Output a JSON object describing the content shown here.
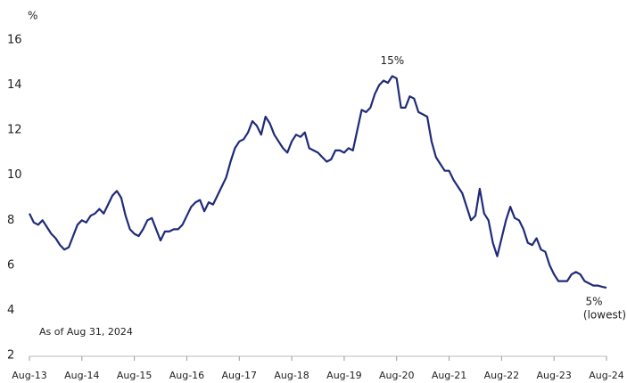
{
  "chart_data": {
    "type": "line",
    "y_label": "%",
    "note": "As of Aug 31, 2024",
    "annotations": [
      "15%",
      "5%",
      "(lowest)"
    ],
    "categories": [
      "Aug-13",
      null,
      null,
      null,
      null,
      null,
      null,
      null,
      null,
      null,
      null,
      null,
      "Aug-14",
      null,
      null,
      null,
      null,
      null,
      null,
      null,
      null,
      null,
      null,
      null,
      "Aug-15",
      null,
      null,
      null,
      null,
      null,
      null,
      null,
      null,
      null,
      null,
      null,
      "Aug-16",
      null,
      null,
      null,
      null,
      null,
      null,
      null,
      null,
      null,
      null,
      null,
      "Aug-17",
      null,
      null,
      null,
      null,
      null,
      null,
      null,
      null,
      null,
      null,
      null,
      "Aug-18",
      null,
      null,
      null,
      null,
      null,
      null,
      null,
      null,
      null,
      null,
      null,
      "Aug-19",
      null,
      null,
      null,
      null,
      null,
      null,
      null,
      null,
      null,
      null,
      null,
      "Aug-20",
      null,
      null,
      null,
      null,
      null,
      null,
      null,
      null,
      null,
      null,
      null,
      "Aug-21",
      null,
      null,
      null,
      null,
      null,
      null,
      null,
      null,
      null,
      null,
      null,
      "Aug-22",
      null,
      null,
      null,
      null,
      null,
      null,
      null,
      null,
      null,
      null,
      null,
      "Aug-23",
      null,
      null,
      null,
      null,
      null,
      null,
      null,
      null,
      null,
      null,
      null,
      "Aug-24"
    ],
    "values": [
      8.3,
      7.9,
      7.8,
      8.0,
      7.7,
      7.4,
      7.2,
      6.9,
      6.7,
      6.8,
      7.3,
      7.8,
      8.0,
      7.9,
      8.2,
      8.3,
      8.5,
      8.3,
      8.7,
      9.1,
      9.3,
      9.0,
      8.2,
      7.6,
      7.4,
      7.3,
      7.6,
      8.0,
      8.1,
      7.6,
      7.1,
      7.5,
      7.5,
      7.6,
      7.6,
      7.8,
      8.2,
      8.6,
      8.8,
      8.9,
      8.4,
      8.8,
      8.7,
      9.1,
      9.5,
      9.9,
      10.6,
      11.2,
      11.5,
      11.6,
      11.9,
      12.4,
      12.2,
      11.8,
      12.6,
      12.3,
      11.8,
      11.5,
      11.2,
      11.0,
      11.5,
      11.8,
      11.7,
      11.9,
      11.2,
      11.1,
      11.0,
      10.8,
      10.6,
      10.7,
      11.1,
      11.1,
      11.0,
      11.2,
      11.1,
      12.0,
      12.9,
      12.8,
      13.0,
      13.6,
      14.0,
      14.2,
      14.1,
      14.4,
      14.3,
      13.0,
      13.0,
      13.5,
      13.4,
      12.8,
      12.7,
      12.6,
      11.5,
      10.8,
      10.5,
      10.2,
      10.2,
      9.8,
      9.5,
      9.2,
      8.6,
      8.0,
      8.2,
      9.4,
      8.3,
      8.0,
      7.0,
      6.4,
      7.2,
      8.0,
      8.6,
      8.1,
      8.0,
      7.6,
      7.0,
      6.9,
      7.2,
      6.7,
      6.6,
      6.0,
      5.6,
      5.3,
      5.3,
      5.3,
      5.6,
      5.7,
      5.6,
      5.3,
      5.2,
      5.1,
      5.1,
      5.05,
      5.0
    ],
    "color": "#1f2b78",
    "ylim": [
      2,
      16
    ],
    "yticks": [
      2,
      4,
      6,
      8,
      10,
      12,
      14,
      16
    ],
    "grid": false
  }
}
